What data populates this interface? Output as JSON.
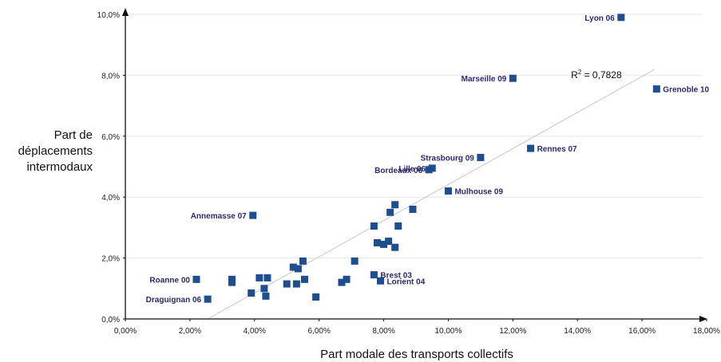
{
  "chart_data": {
    "type": "scatter",
    "xlabel": "Part modale des transports collectifs",
    "ylabel_lines": [
      "Part de",
      "déplacements",
      "intermodaux"
    ],
    "xlim": [
      0,
      18
    ],
    "ylim": [
      0,
      10
    ],
    "x_ticks": [
      0,
      2,
      4,
      6,
      8,
      10,
      12,
      14,
      16,
      18
    ],
    "x_tick_labels": [
      "0,00%",
      "2,00%",
      "4,00%",
      "6,00%",
      "8,00%",
      "10,00%",
      "12,00%",
      "14,00%",
      "16,00%",
      "18,00%"
    ],
    "y_ticks": [
      0,
      2,
      4,
      6,
      8,
      10
    ],
    "y_tick_labels": [
      "0,0%",
      "2,0%",
      "4,0%",
      "6,0%",
      "8,0%",
      "10,0%"
    ],
    "grid": "horizontal",
    "marker_color": "#1f4e8c",
    "label_color": "#2b2a6e",
    "trendline": {
      "x": [
        2.55,
        16.4
      ],
      "y": [
        0.0,
        8.2
      ],
      "r2_label": "R",
      "r2_sup": "2",
      "r2_value": " = 0,7828",
      "r2_at": [
        13.8,
        7.9
      ],
      "color": "#c8c8c8"
    },
    "points": [
      {
        "x": 15.35,
        "y": 9.9,
        "label": "Lyon 06",
        "anchor": "end"
      },
      {
        "x": 12.0,
        "y": 7.9,
        "label": "Marseille 09",
        "anchor": "end"
      },
      {
        "x": 16.45,
        "y": 7.55,
        "label": "Grenoble 10",
        "anchor": "start"
      },
      {
        "x": 12.55,
        "y": 5.6,
        "label": "Rennes 07",
        "anchor": "start"
      },
      {
        "x": 11.0,
        "y": 5.3,
        "label": "Strasbourg 09",
        "anchor": "end"
      },
      {
        "x": 9.5,
        "y": 4.95,
        "label": "Lille 06",
        "anchor": "end"
      },
      {
        "x": 9.4,
        "y": 4.9,
        "label": "Bordeaux 06",
        "anchor": "end"
      },
      {
        "x": 10.0,
        "y": 4.2,
        "label": "Mulhouse 09",
        "anchor": "start"
      },
      {
        "x": 3.95,
        "y": 3.4,
        "label": "Annemasse 07",
        "anchor": "end"
      },
      {
        "x": 7.7,
        "y": 1.45,
        "label": "Brest 03",
        "anchor": "start"
      },
      {
        "x": 7.9,
        "y": 1.25,
        "label": "Lorient 04",
        "anchor": "start"
      },
      {
        "x": 2.2,
        "y": 1.3,
        "label": "Roanne 00",
        "anchor": "end"
      },
      {
        "x": 2.55,
        "y": 0.65,
        "label": "Draguignan 06",
        "anchor": "end"
      },
      {
        "x": 8.35,
        "y": 3.75,
        "label": ""
      },
      {
        "x": 8.9,
        "y": 3.6,
        "label": ""
      },
      {
        "x": 8.2,
        "y": 3.5,
        "label": ""
      },
      {
        "x": 7.7,
        "y": 3.05,
        "label": ""
      },
      {
        "x": 8.45,
        "y": 3.05,
        "label": ""
      },
      {
        "x": 7.8,
        "y": 2.5,
        "label": ""
      },
      {
        "x": 8.15,
        "y": 2.55,
        "label": ""
      },
      {
        "x": 8.0,
        "y": 2.45,
        "label": ""
      },
      {
        "x": 8.35,
        "y": 2.35,
        "label": ""
      },
      {
        "x": 7.1,
        "y": 1.9,
        "label": ""
      },
      {
        "x": 5.5,
        "y": 1.9,
        "label": ""
      },
      {
        "x": 5.2,
        "y": 1.7,
        "label": ""
      },
      {
        "x": 5.35,
        "y": 1.65,
        "label": ""
      },
      {
        "x": 3.3,
        "y": 1.3,
        "label": ""
      },
      {
        "x": 3.3,
        "y": 1.2,
        "label": ""
      },
      {
        "x": 4.15,
        "y": 1.35,
        "label": ""
      },
      {
        "x": 4.4,
        "y": 1.35,
        "label": ""
      },
      {
        "x": 4.3,
        "y": 1.0,
        "label": ""
      },
      {
        "x": 3.9,
        "y": 0.85,
        "label": ""
      },
      {
        "x": 4.35,
        "y": 0.75,
        "label": ""
      },
      {
        "x": 5.0,
        "y": 1.15,
        "label": ""
      },
      {
        "x": 5.3,
        "y": 1.15,
        "label": ""
      },
      {
        "x": 5.55,
        "y": 1.3,
        "label": ""
      },
      {
        "x": 5.9,
        "y": 0.72,
        "label": ""
      },
      {
        "x": 6.7,
        "y": 1.2,
        "label": ""
      },
      {
        "x": 6.85,
        "y": 1.3,
        "label": ""
      }
    ]
  }
}
